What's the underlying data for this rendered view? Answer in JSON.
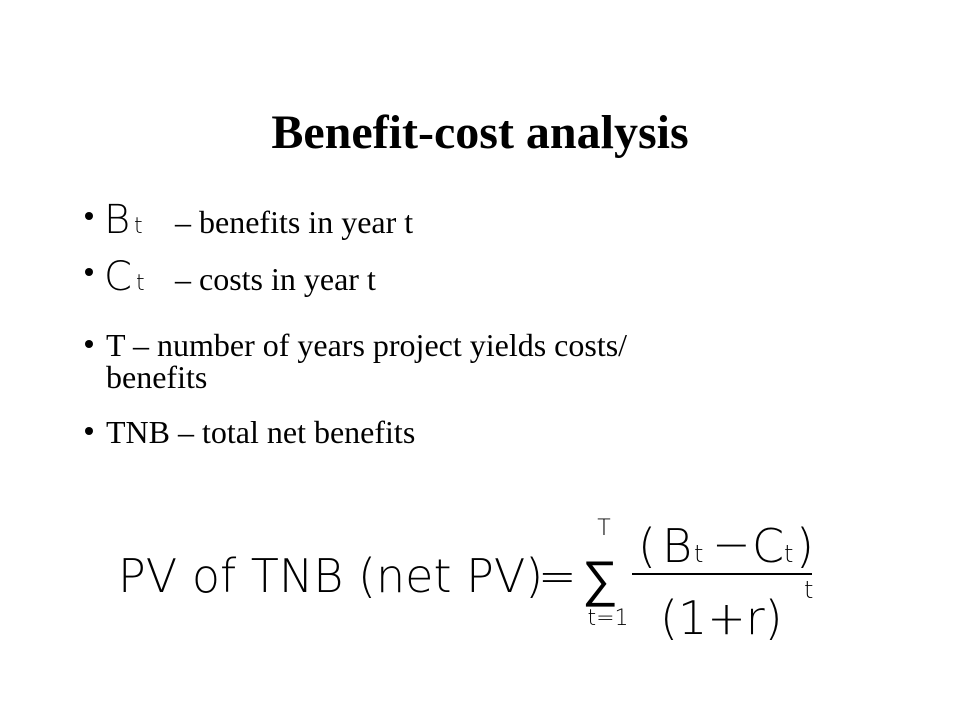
{
  "title": "Benefit-cost analysis",
  "bullets": [
    {
      "symbol": "B",
      "subscript": "t",
      "text": "– benefits in year t"
    },
    {
      "symbol": "C",
      "subscript": "t",
      "text": "– costs in year t"
    },
    {
      "lines": [
        "T – number of years project yields costs/",
        "benefits"
      ]
    },
    {
      "text": "TNB – total net benefits"
    }
  ],
  "formula": {
    "lhs": "PV of TNB (net PV)",
    "equals": "=",
    "sum_symbol": "∑",
    "sum_upper": "T",
    "sum_lower": "t=1",
    "numerator": {
      "open": "(",
      "b": "B",
      "b_sub": "t",
      "minus": "−",
      "c": "C",
      "c_sub": "t",
      "close": ")"
    },
    "denominator": {
      "base": "(1+r)",
      "exponent": "t"
    }
  }
}
